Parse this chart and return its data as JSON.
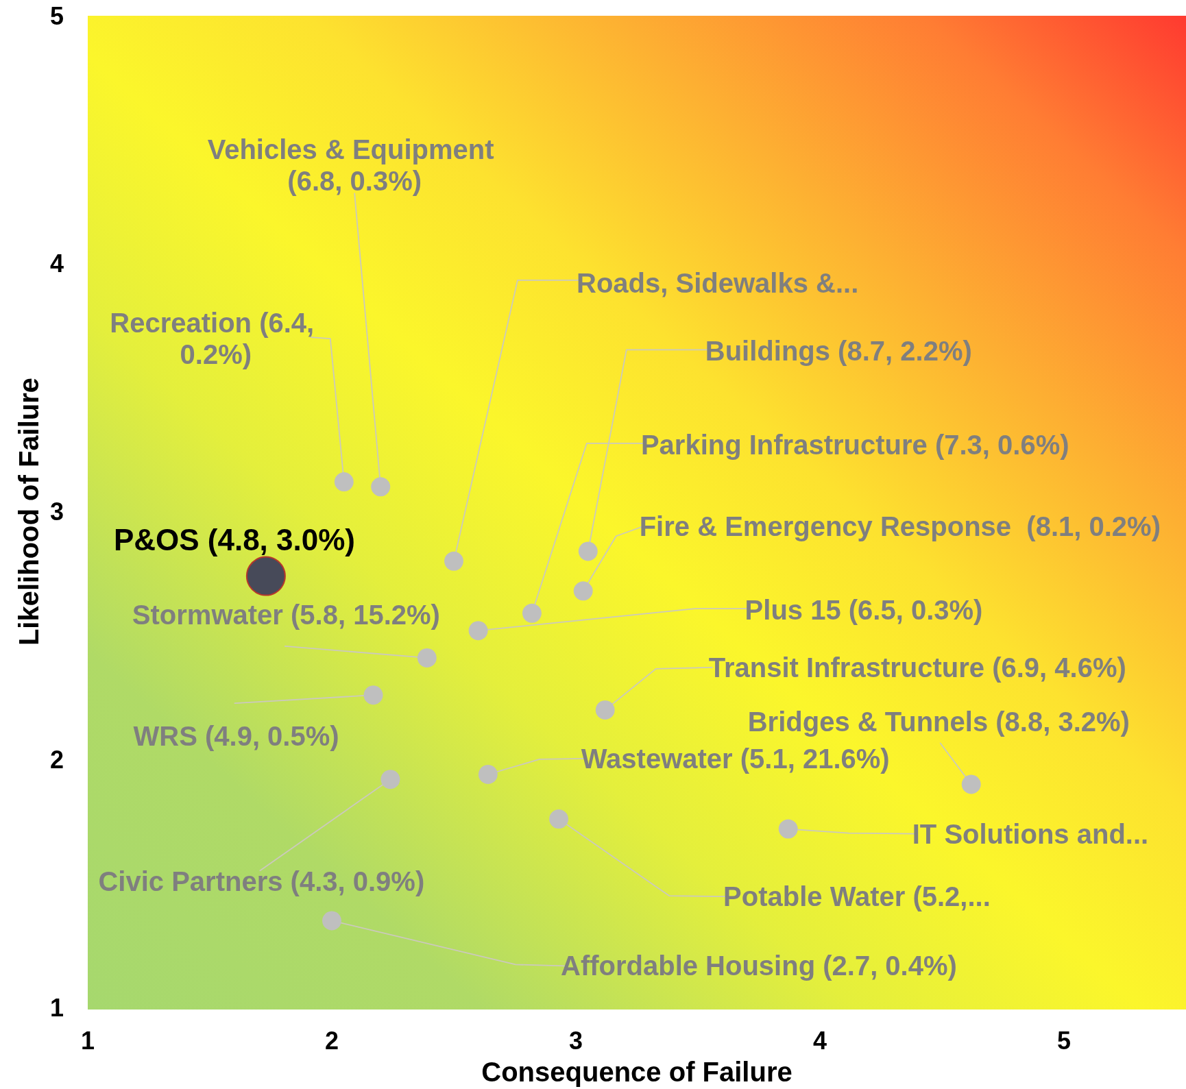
{
  "chart_data": {
    "type": "scatter",
    "xlabel": "Consequence of Failure",
    "ylabel": "Likelihood of Failure",
    "xlim": [
      1,
      5.5
    ],
    "ylim": [
      1,
      5
    ],
    "xticks": [
      1,
      2,
      3,
      4,
      5
    ],
    "yticks": [
      1,
      2,
      3,
      4,
      5
    ],
    "grid": false,
    "marker": "circle",
    "series": [
      {
        "color": "#474a59",
        "x": [
          1.73
        ],
        "values": [
          2.74
        ]
      },
      {
        "color": "#bfbfbf",
        "x": [
          2.05,
          2.2,
          2.5,
          3.05,
          2.82,
          3.03,
          2.6,
          2.39,
          2.17,
          3.12,
          4.62,
          2.64,
          3.87,
          2.24,
          2.93,
          2.0
        ],
        "values": [
          3.12,
          3.1,
          2.8,
          2.84,
          2.59,
          2.68,
          2.52,
          2.41,
          2.26,
          2.2,
          1.9,
          1.94,
          1.72,
          1.92,
          1.76,
          1.35
        ]
      }
    ],
    "annotations": [
      {
        "text": "P&OS (4.8, 3.0%)",
        "x": 1.73,
        "y": 2.74
      },
      {
        "text": "Recreation (6.4, 0.2%)",
        "x": 2.05,
        "y": 3.12
      },
      {
        "text": "Vehicles & Equipment (6.8, 0.3%)",
        "x": 2.2,
        "y": 3.1
      },
      {
        "text": "Roads, Sidewalks &...",
        "x": 2.5,
        "y": 2.8
      },
      {
        "text": "Buildings (8.7, 2.2%)",
        "x": 3.05,
        "y": 2.84
      },
      {
        "text": "Parking Infrastructure (7.3, 0.6%)",
        "x": 2.82,
        "y": 2.59
      },
      {
        "text": "Fire & Emergency Response  (8.1, 0.2%)",
        "x": 3.03,
        "y": 2.68
      },
      {
        "text": "Plus 15 (6.5, 0.3%)",
        "x": 2.6,
        "y": 2.52
      },
      {
        "text": "Stormwater (5.8, 15.2%)",
        "x": 2.39,
        "y": 2.41
      },
      {
        "text": "WRS (4.9, 0.5%)",
        "x": 2.17,
        "y": 2.26
      },
      {
        "text": "Transit Infrastructure (6.9, 4.6%)",
        "x": 3.12,
        "y": 2.2
      },
      {
        "text": "Bridges & Tunnels (8.8, 3.2%)",
        "x": 4.62,
        "y": 1.9
      },
      {
        "text": "Wastewater (5.1, 21.6%)",
        "x": 2.64,
        "y": 1.94
      },
      "IT Solutions and...",
      {
        "text": "Civic Partners (4.3, 0.9%)",
        "x": 2.24,
        "y": 1.92
      },
      {
        "text": "Potable Water (5.2,...",
        "x": 2.93,
        "y": 1.76
      },
      {
        "text": "Affordable Housing (2.7, 0.4%)",
        "x": 2.0,
        "y": 1.35
      }
    ]
  }
}
